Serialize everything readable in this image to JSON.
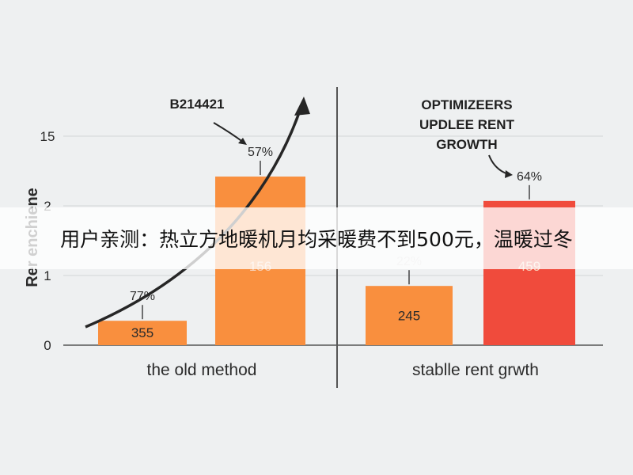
{
  "chart_data": {
    "type": "bar",
    "ylabel": "Rer enchiene",
    "y_ticks": [
      "0",
      "1",
      "2",
      "15"
    ],
    "panels": [
      {
        "category_label": "the old method",
        "annotation": [
          "B214421"
        ],
        "bars": [
          {
            "value_label": "355",
            "pct_label": "77%",
            "level": 0.35,
            "color": "#f98f3e"
          },
          {
            "value_label": "156",
            "pct_label": "57%",
            "level": 2.42,
            "color": "#f98f3e"
          }
        ]
      },
      {
        "category_label": "stablle rent grwth",
        "annotation": [
          "OPTIMIZEERS",
          "UPDLEE RENT",
          "GROWTH"
        ],
        "bars": [
          {
            "value_label": "245",
            "pct_label": "22%",
            "level": 0.85,
            "color": "#f98f3e"
          },
          {
            "value_label": "459",
            "pct_label": "64%",
            "level": 2.07,
            "color": "#f04b3c"
          }
        ]
      }
    ]
  },
  "banner": {
    "text": "用户亲测：热立方地暖机月均采暖费不到500元，温暖过冬"
  }
}
